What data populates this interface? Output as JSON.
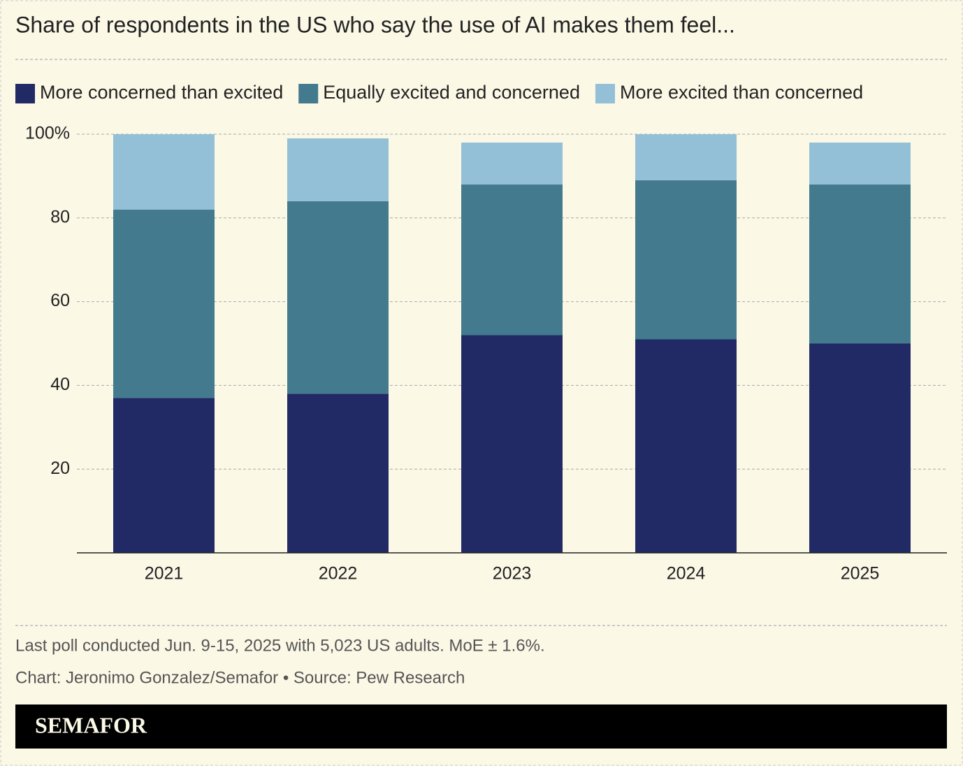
{
  "chart_data": {
    "type": "stacked-bar",
    "title": "Share of respondents in the US who say the use of AI makes them feel...",
    "categories": [
      "2021",
      "2022",
      "2023",
      "2024",
      "2025"
    ],
    "series": [
      {
        "name": "More concerned than excited",
        "color": "#222a66",
        "values": [
          37,
          38,
          52,
          51,
          50
        ]
      },
      {
        "name": "Equally excited and concerned",
        "color": "#437a8e",
        "values": [
          45,
          46,
          36,
          38,
          38
        ]
      },
      {
        "name": "More excited than concerned",
        "color": "#93c0d6",
        "values": [
          18,
          15,
          10,
          11,
          10
        ]
      }
    ],
    "ylim": [
      0,
      100
    ],
    "yticks": [
      20,
      40,
      60,
      80,
      {
        "value": 100,
        "label": "100%"
      }
    ],
    "grid": true,
    "note": "Last poll conducted Jun. 9-15, 2025 with 5,023 US adults. MoE ± 1.6%.",
    "source": "Chart: Jeronimo Gonzalez/Semafor • Source: Pew Research",
    "brand": "SEMAFOR"
  }
}
